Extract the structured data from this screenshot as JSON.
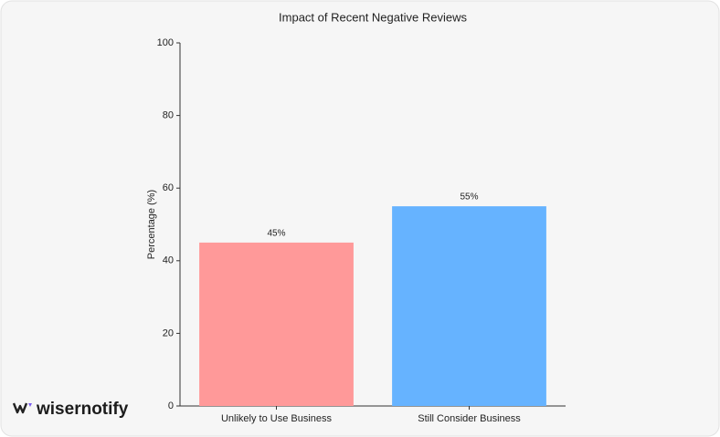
{
  "chart_data": {
    "type": "bar",
    "title": "Impact of Recent Negative Reviews",
    "y_label": "Percentage (%)",
    "categories": [
      "Unlikely to Use Business",
      "Still Consider Business"
    ],
    "values": [
      45,
      55
    ],
    "value_labels": [
      "45%",
      "55%"
    ],
    "colors": [
      "#ff9999",
      "#66b3ff"
    ],
    "ylim": [
      0,
      100
    ],
    "yticks": [
      0,
      20,
      40,
      60,
      80,
      100
    ],
    "grid": false
  },
  "brand": "wisernotify"
}
